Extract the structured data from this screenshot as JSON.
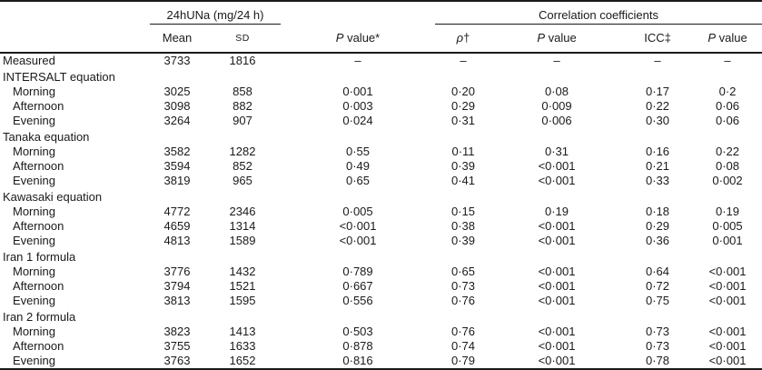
{
  "table": {
    "spanners": [
      {
        "text": "",
        "span": 1,
        "underline": false
      },
      {
        "text": "24hUNa (mg/24 h)",
        "span": 2,
        "underline": true
      },
      {
        "text": "",
        "span": 1,
        "underline": false
      },
      {
        "text": "Correlation coefficients",
        "span": 4,
        "underline": true
      }
    ],
    "columns": [
      {
        "text": ""
      },
      {
        "text": "Mean"
      },
      {
        "smallcaps": "SD"
      },
      {
        "italic": "P",
        "text": " value*"
      },
      {
        "italic": "ρ",
        "text": "†"
      },
      {
        "italic": "P",
        "text": " value"
      },
      {
        "text": "ICC‡"
      },
      {
        "italic": "P",
        "text": " value"
      }
    ],
    "col_keys": [
      "mean",
      "sd",
      "p_value",
      "rho",
      "rho_p_value",
      "icc",
      "icc_p_value"
    ],
    "rows": [
      {
        "label": "Measured",
        "type": "data",
        "indent": false,
        "values": [
          "3733",
          "1816",
          "–",
          "–",
          "–",
          "–",
          "–"
        ]
      },
      {
        "label": "INTERSALT equation",
        "type": "group",
        "indent": false,
        "values": [
          "",
          "",
          "",
          "",
          "",
          "",
          ""
        ]
      },
      {
        "label": "Morning",
        "type": "data",
        "indent": true,
        "values": [
          "3025",
          "858",
          "0·001",
          "0·20",
          "0·08",
          "0·17",
          "0·2"
        ]
      },
      {
        "label": "Afternoon",
        "type": "data",
        "indent": true,
        "values": [
          "3098",
          "882",
          "0·003",
          "0·29",
          "0·009",
          "0·22",
          "0·06"
        ]
      },
      {
        "label": "Evening",
        "type": "data",
        "indent": true,
        "values": [
          "3264",
          "907",
          "0·024",
          "0·31",
          "0·006",
          "0·30",
          "0·06"
        ]
      },
      {
        "label": "Tanaka equation",
        "type": "group",
        "indent": false,
        "values": [
          "",
          "",
          "",
          "",
          "",
          "",
          ""
        ]
      },
      {
        "label": "Morning",
        "type": "data",
        "indent": true,
        "values": [
          "3582",
          "1282",
          "0·55",
          "0·11",
          "0·31",
          "0·16",
          "0·22"
        ]
      },
      {
        "label": "Afternoon",
        "type": "data",
        "indent": true,
        "values": [
          "3594",
          "852",
          "0·49",
          "0·39",
          "<0·001",
          "0·21",
          "0·08"
        ]
      },
      {
        "label": "Evening",
        "type": "data",
        "indent": true,
        "values": [
          "3819",
          "965",
          "0·65",
          "0·41",
          "<0·001",
          "0·33",
          "0·002"
        ]
      },
      {
        "label": "Kawasaki equation",
        "type": "group",
        "indent": false,
        "values": [
          "",
          "",
          "",
          "",
          "",
          "",
          ""
        ]
      },
      {
        "label": "Morning",
        "type": "data",
        "indent": true,
        "values": [
          "4772",
          "2346",
          "0·005",
          "0·15",
          "0·19",
          "0·18",
          "0·19"
        ]
      },
      {
        "label": "Afternoon",
        "type": "data",
        "indent": true,
        "values": [
          "4659",
          "1314",
          "<0·001",
          "0·38",
          "<0·001",
          "0·29",
          "0·005"
        ]
      },
      {
        "label": "Evening",
        "type": "data",
        "indent": true,
        "values": [
          "4813",
          "1589",
          "<0·001",
          "0·39",
          "<0·001",
          "0·36",
          "0·001"
        ]
      },
      {
        "label": "Iran 1 formula",
        "type": "group",
        "indent": false,
        "values": [
          "",
          "",
          "",
          "",
          "",
          "",
          ""
        ]
      },
      {
        "label": "Morning",
        "type": "data",
        "indent": true,
        "values": [
          "3776",
          "1432",
          "0·789",
          "0·65",
          "<0·001",
          "0·64",
          "<0·001"
        ]
      },
      {
        "label": "Afternoon",
        "type": "data",
        "indent": true,
        "values": [
          "3794",
          "1521",
          "0·667",
          "0·73",
          "<0·001",
          "0·72",
          "<0·001"
        ]
      },
      {
        "label": "Evening",
        "type": "data",
        "indent": true,
        "values": [
          "3813",
          "1595",
          "0·556",
          "0·76",
          "<0·001",
          "0·75",
          "<0·001"
        ]
      },
      {
        "label": "Iran 2 formula",
        "type": "group",
        "indent": false,
        "values": [
          "",
          "",
          "",
          "",
          "",
          "",
          ""
        ]
      },
      {
        "label": "Morning",
        "type": "data",
        "indent": true,
        "values": [
          "3823",
          "1413",
          "0·503",
          "0·76",
          "<0·001",
          "0·73",
          "<0·001"
        ]
      },
      {
        "label": "Afternoon",
        "type": "data",
        "indent": true,
        "values": [
          "3755",
          "1633",
          "0·878",
          "0·74",
          "<0·001",
          "0·73",
          "<0·001"
        ]
      },
      {
        "label": "Evening",
        "type": "data",
        "indent": true,
        "values": [
          "3763",
          "1652",
          "0·816",
          "0·79",
          "<0·001",
          "0·78",
          "<0·001"
        ]
      }
    ]
  }
}
